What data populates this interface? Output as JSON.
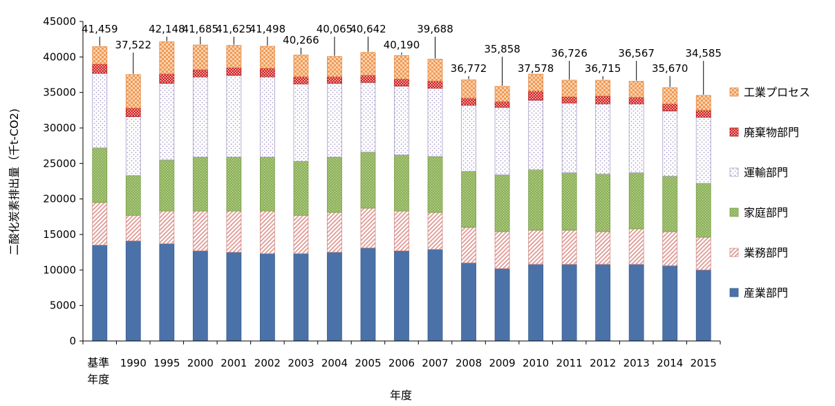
{
  "chart_data": {
    "type": "bar",
    "stacked": true,
    "categories": [
      "基準\n年度",
      "1990",
      "1995",
      "2000",
      "2001",
      "2002",
      "2003",
      "2004",
      "2005",
      "2006",
      "2007",
      "2008",
      "2009",
      "2010",
      "2011",
      "2012",
      "2013",
      "2014",
      "2015"
    ],
    "ylabel": "二酸化炭素排出量（千t-CO2)",
    "xlabel": "年度",
    "ylim": [
      0,
      45000
    ],
    "yticks": [
      0,
      5000,
      10000,
      15000,
      20000,
      25000,
      30000,
      35000,
      40000,
      45000
    ],
    "legend_position": "right",
    "totals": [
      "41,459",
      "37,522",
      "42,148",
      "41,685",
      "41,625",
      "41,498",
      "40,266",
      "40,065",
      "40,642",
      "40,190",
      "39,688",
      "36,772",
      "35,858",
      "37,578",
      "36,726",
      "36,715",
      "36,567",
      "35,670",
      "34,585"
    ],
    "series": [
      {
        "name": "産業部門",
        "color": "#4a72a8",
        "pattern": "solid",
        "values": [
          13500,
          14100,
          13700,
          12700,
          12500,
          12300,
          12300,
          12500,
          13100,
          12700,
          12900,
          11000,
          10200,
          10800,
          10800,
          10800,
          10800,
          10600,
          10000
        ]
      },
      {
        "name": "業務部門",
        "color": "#e5a09b",
        "pattern": "diagonal",
        "values": [
          6000,
          3600,
          4600,
          5600,
          5800,
          6000,
          5400,
          5600,
          5600,
          5600,
          5200,
          5000,
          5200,
          4800,
          4800,
          4600,
          5000,
          4800,
          4600
        ]
      },
      {
        "name": "家庭部門",
        "color": "#8eaf5a",
        "pattern": "dotted",
        "values": [
          7700,
          5600,
          7200,
          7600,
          7600,
          7600,
          7600,
          7800,
          7900,
          7900,
          7900,
          7900,
          8000,
          8500,
          8100,
          8100,
          7900,
          7800,
          7600
        ]
      },
      {
        "name": "運輸部門",
        "color": "#a8a0c8",
        "pattern": "light-dots",
        "values": [
          10500,
          8300,
          10800,
          11300,
          11500,
          11300,
          10900,
          10400,
          9800,
          9700,
          9600,
          9300,
          9500,
          9800,
          9800,
          9900,
          9700,
          9200,
          9300
        ]
      },
      {
        "name": "廃棄物部門",
        "color": "#d42a2a",
        "pattern": "dotted-red",
        "values": [
          1300,
          1200,
          1300,
          1000,
          1100,
          1200,
          1000,
          900,
          1000,
          1000,
          1000,
          1000,
          800,
          1300,
          900,
          1100,
          900,
          1000,
          1000
        ]
      },
      {
        "name": "工業プロセス",
        "color": "#f0a060",
        "pattern": "checker",
        "values": [
          2459,
          4722,
          4548,
          3485,
          3125,
          3098,
          3066,
          2865,
          3242,
          3290,
          3088,
          2572,
          2158,
          2378,
          2326,
          2215,
          2267,
          2270,
          2085
        ]
      }
    ]
  }
}
